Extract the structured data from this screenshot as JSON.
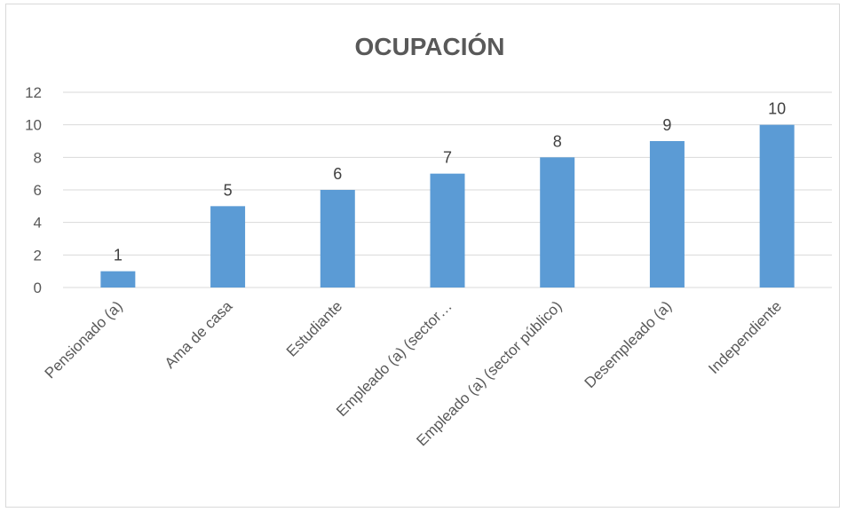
{
  "chart_data": {
    "type": "bar",
    "title": "OCUPACIÓN",
    "categories": [
      "Pensionado (a)",
      "Ama de casa",
      "Estudiante",
      "Empleado (a) (sector…",
      "Empleado (a) (sector público)",
      "Desempleado (a)",
      "Independiente"
    ],
    "values": [
      1,
      5,
      6,
      7,
      8,
      9,
      10
    ],
    "data_labels": [
      "1",
      "5",
      "6",
      "7",
      "8",
      "9",
      "10"
    ],
    "ylim": [
      0,
      12
    ],
    "yticks": [
      0,
      2,
      4,
      6,
      8,
      10,
      12
    ],
    "grid": true,
    "legend": "none",
    "bar_color": "#5b9bd5",
    "gridline_color": "#d9d9d9"
  }
}
